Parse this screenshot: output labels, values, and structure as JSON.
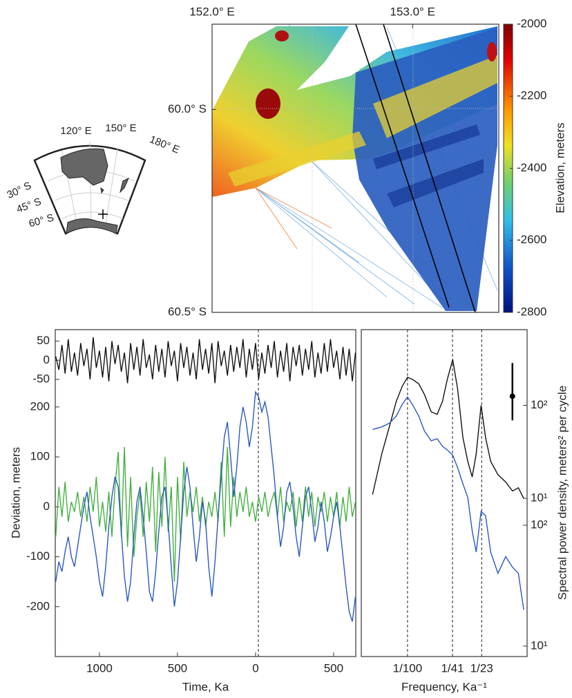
{
  "locator_map": {
    "lon_labels": [
      "120° E",
      "150° E",
      "180° E"
    ],
    "lat_labels": [
      "30° S",
      "45° S",
      "60° S"
    ]
  },
  "chart_data": [
    {
      "type": "map",
      "xlim": [
        152.0,
        153.43
      ],
      "ylim": [
        -60.5,
        -59.79
      ],
      "xticks": [
        {
          "value": 152.0,
          "label": "152.0° E"
        },
        {
          "value": 153.0,
          "label": "153.0° E"
        }
      ],
      "yticks": [
        {
          "value": -60.0,
          "label": "60.0° S"
        },
        {
          "value": -60.5,
          "label": "60.5° S"
        }
      ],
      "colorbar": {
        "label": "Elevation, meters",
        "clim": [
          -2800,
          -2000
        ],
        "ticks": [
          -2000,
          -2200,
          -2400,
          -2600,
          -2800
        ]
      }
    },
    {
      "type": "line",
      "xlabel": "Time, Ka",
      "ylabel": "Deviation, meters",
      "xlim": [
        1283,
        -642
      ],
      "xticks": [
        1000,
        500,
        0,
        {
          "value": -500,
          "label": "500"
        }
      ],
      "ylim": [
        -300,
        240
      ],
      "yticks": [
        200,
        100,
        0,
        -100,
        -200
      ],
      "y2lim": [
        -70,
        80
      ],
      "y2ticks": [
        50,
        0,
        -50
      ],
      "vlines": [
        -18
      ],
      "x": [
        1280,
        1260,
        1240,
        1220,
        1200,
        1180,
        1160,
        1140,
        1120,
        1100,
        1080,
        1060,
        1040,
        1020,
        1000,
        980,
        960,
        940,
        920,
        900,
        880,
        860,
        840,
        820,
        800,
        780,
        760,
        740,
        720,
        700,
        680,
        660,
        640,
        620,
        600,
        580,
        560,
        540,
        520,
        500,
        480,
        460,
        440,
        420,
        400,
        380,
        360,
        340,
        320,
        300,
        280,
        260,
        240,
        220,
        200,
        180,
        160,
        140,
        120,
        100,
        80,
        60,
        40,
        20,
        0,
        -20,
        -40,
        -60,
        -80,
        -100,
        -120,
        -140,
        -160,
        -180,
        -200,
        -220,
        -240,
        -260,
        -280,
        -300,
        -320,
        -340,
        -360,
        -380,
        -400,
        -420,
        -440,
        -460,
        -480,
        -500,
        -520,
        -540,
        -560,
        -580,
        -600,
        -620,
        -640
      ],
      "series": [
        {
          "color": "#111111",
          "axis": "y2",
          "values": [
            10,
            -25,
            40,
            -35,
            55,
            -30,
            20,
            -40,
            45,
            -15,
            30,
            -50,
            60,
            -20,
            25,
            -45,
            35,
            -55,
            50,
            -10,
            40,
            -30,
            20,
            -60,
            45,
            -25,
            35,
            -40,
            55,
            -20,
            15,
            -50,
            40,
            -30,
            30,
            -45,
            50,
            -15,
            25,
            -55,
            45,
            -20,
            35,
            -40,
            20,
            -50,
            55,
            -25,
            30,
            -35,
            45,
            -60,
            50,
            -15,
            25,
            -40,
            40,
            -30,
            35,
            -20,
            55,
            -45,
            30,
            -25,
            45,
            -50,
            20,
            -35,
            40,
            -20,
            50,
            -45,
            25,
            -30,
            45,
            -55,
            35,
            -15,
            40,
            -40,
            30,
            -25,
            50,
            -45,
            20,
            -35,
            45,
            -30,
            55,
            -20,
            25,
            -50,
            35,
            -40,
            30,
            -55,
            20
          ]
        },
        {
          "color": "#44b040",
          "axis": "y",
          "values": [
            -60,
            40,
            -20,
            50,
            -30,
            10,
            -10,
            30,
            -20,
            20,
            -30,
            40,
            -10,
            60,
            -40,
            10,
            -50,
            30,
            -60,
            40,
            110,
            -60,
            120,
            -80,
            60,
            -100,
            -20,
            30,
            -60,
            50,
            -30,
            80,
            -90,
            70,
            -40,
            100,
            -50,
            40,
            -150,
            60,
            -70,
            90,
            -20,
            30,
            -10,
            40,
            -30,
            20,
            -40,
            10,
            -20,
            30,
            -30,
            90,
            -60,
            120,
            -40,
            60,
            -20,
            30,
            -10,
            40,
            -20,
            10,
            -30,
            20,
            -10,
            30,
            -20,
            10,
            30,
            -20,
            40,
            -30,
            10,
            -10,
            30,
            -40,
            20,
            -30,
            40,
            -20,
            30,
            -40,
            20,
            -10,
            30,
            -30,
            20,
            -20,
            30,
            -40,
            20,
            -30,
            40,
            -20,
            10
          ]
        },
        {
          "color": "#2a58c2",
          "axis": "y",
          "values": [
            -150,
            -110,
            -130,
            -90,
            -60,
            -100,
            -120,
            -80,
            -40,
            0,
            30,
            -20,
            -60,
            -100,
            -150,
            -180,
            -120,
            -40,
            20,
            60,
            40,
            -50,
            -140,
            -190,
            -150,
            -60,
            10,
            40,
            -20,
            -90,
            -170,
            -190,
            -130,
            -50,
            20,
            40,
            -30,
            -120,
            -200,
            -150,
            -60,
            30,
            80,
            40,
            -40,
            -110,
            -60,
            10,
            -30,
            -120,
            -180,
            -110,
            -20,
            60,
            140,
            170,
            100,
            20,
            80,
            160,
            200,
            170,
            120,
            160,
            230,
            220,
            190,
            210,
            180,
            120,
            60,
            -20,
            -80,
            -40,
            30,
            50,
            0,
            -60,
            -100,
            -40,
            20,
            40,
            -10,
            -70,
            -40,
            10,
            -30,
            -90,
            -60,
            -20,
            10,
            -40,
            -100,
            -160,
            -210,
            -230,
            -180
          ]
        }
      ]
    },
    {
      "type": "line",
      "xscale": "log",
      "yscale": "log",
      "xlabel": "Frequency, Ka⁻¹",
      "ylabel": "Spectral power density, meters² per cycle",
      "xlim": [
        0.004,
        0.107
      ],
      "xticks": [
        {
          "value": 0.01,
          "label": "1/100"
        },
        {
          "value": 0.02439,
          "label": "1/41"
        },
        {
          "value": 0.04348,
          "label": "1/23"
        }
      ],
      "ylim": [
        8.2,
        4150
      ],
      "yticks": [
        {
          "value": 10,
          "label": "10¹"
        },
        {
          "value": 100,
          "label": "10²"
        }
      ],
      "y2lim": [
        0.2,
        650
      ],
      "y2ticks": [
        {
          "value": 10,
          "label": "10¹"
        },
        {
          "value": 100,
          "label": "10²"
        }
      ],
      "x": [
        0.005,
        0.006,
        0.007,
        0.008,
        0.009,
        0.01,
        0.011,
        0.0125,
        0.014,
        0.016,
        0.018,
        0.02,
        0.022,
        0.0245,
        0.027,
        0.03,
        0.033,
        0.036,
        0.039,
        0.043,
        0.047,
        0.052,
        0.06,
        0.07,
        0.08,
        0.09,
        0.1
      ],
      "series": [
        {
          "color": "#111111",
          "axis": "y2",
          "values": [
            11,
            30,
            60,
            110,
            160,
            200,
            190,
            170,
            130,
            85,
            80,
            110,
            190,
            310,
            150,
            45,
            25,
            17,
            30,
            100,
            45,
            25,
            18,
            15,
            12,
            13,
            10
          ]
        },
        {
          "color": "#2a58c2",
          "axis": "y",
          "values": [
            620,
            650,
            700,
            800,
            1000,
            1150,
            1000,
            800,
            600,
            500,
            520,
            450,
            420,
            380,
            300,
            220,
            170,
            90,
            60,
            130,
            120,
            60,
            40,
            55,
            45,
            40,
            20
          ]
        }
      ],
      "confidence_bar": {
        "axis": "y2",
        "x": 0.08,
        "value": 125,
        "low": 69,
        "high": 285
      }
    }
  ]
}
